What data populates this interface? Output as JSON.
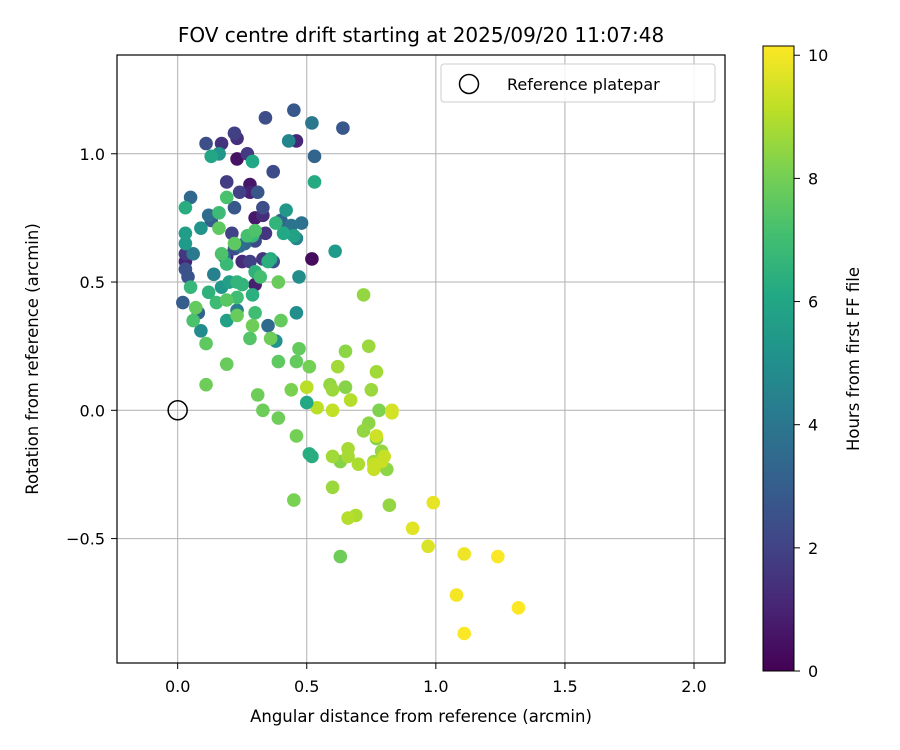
{
  "chart_data": {
    "type": "scatter",
    "title": "FOV centre drift starting at 2025/09/20 11:07:48",
    "xlabel": "Angular distance from reference (arcmin)",
    "ylabel": "Rotation from reference (arcmin)",
    "xlim": [
      -0.235,
      2.12
    ],
    "ylim": [
      -0.985,
      1.385
    ],
    "xticks": [
      0.0,
      0.5,
      1.0,
      1.5,
      2.0
    ],
    "xtick_labels": [
      "0.0",
      "0.5",
      "1.0",
      "1.5",
      "2.0"
    ],
    "yticks": [
      -0.5,
      0.0,
      0.5,
      1.0
    ],
    "ytick_labels": [
      "−0.5",
      "0.0",
      "0.5",
      "1.0"
    ],
    "grid": true,
    "legend": {
      "placement": "top-right",
      "entries": [
        "Reference platepar"
      ]
    },
    "reference_point": {
      "x": 0.0,
      "y": 0.0,
      "label": "Reference platepar"
    },
    "colorbar": {
      "label": "Hours from first FF file",
      "range": [
        0,
        10.15
      ],
      "ticks": [
        0,
        2,
        4,
        6,
        8,
        10
      ],
      "tick_labels": [
        "0",
        "2",
        "4",
        "6",
        "8",
        "10"
      ],
      "colormap": "viridis"
    },
    "series": [
      {
        "name": "FOV centre positions",
        "points": [
          [
            0.23,
            0.98,
            0.5
          ],
          [
            0.28,
            0.88,
            0.6
          ],
          [
            0.52,
            0.59,
            0.3
          ],
          [
            0.16,
            1.0,
            0.8
          ],
          [
            0.3,
            0.75,
            0.7
          ],
          [
            0.28,
            0.85,
            1.0
          ],
          [
            0.3,
            0.49,
            0.9
          ],
          [
            0.03,
            0.58,
            1.0
          ],
          [
            0.25,
            0.58,
            1.2
          ],
          [
            0.46,
            1.05,
            1.1
          ],
          [
            0.03,
            0.61,
            1.6
          ],
          [
            0.23,
            1.06,
            1.4
          ],
          [
            0.27,
            1.0,
            1.7
          ],
          [
            0.17,
            1.04,
            1.5
          ],
          [
            0.19,
            0.89,
            1.8
          ],
          [
            0.22,
            1.08,
            1.9
          ],
          [
            0.21,
            0.69,
            2.0
          ],
          [
            0.33,
            0.76,
            1.3
          ],
          [
            0.19,
            0.6,
            1.5
          ],
          [
            0.28,
            0.58,
            1.9
          ],
          [
            0.33,
            0.59,
            1.6
          ],
          [
            0.34,
            0.69,
            1.6
          ],
          [
            0.24,
            0.85,
            2.0
          ],
          [
            0.22,
            0.63,
            2.3
          ],
          [
            0.3,
            0.66,
            2.2
          ],
          [
            0.11,
            1.04,
            2.4
          ],
          [
            0.33,
            0.79,
            2.4
          ],
          [
            0.22,
            0.79,
            2.8
          ],
          [
            0.45,
            1.17,
            2.8
          ],
          [
            0.34,
            1.14,
            2.4
          ],
          [
            0.37,
            0.93,
            2.3
          ],
          [
            0.37,
            0.58,
            2.5
          ],
          [
            0.53,
            0.99,
            3.3
          ],
          [
            0.64,
            1.1,
            2.8
          ],
          [
            0.31,
            0.85,
            2.7
          ],
          [
            0.04,
            0.52,
            2.6
          ],
          [
            0.03,
            0.55,
            2.6
          ],
          [
            0.13,
            0.74,
            2.9
          ],
          [
            0.02,
            0.42,
            3.0
          ],
          [
            0.05,
            0.83,
            3.4
          ],
          [
            0.12,
            0.76,
            3.6
          ],
          [
            0.08,
            0.38,
            3.2
          ],
          [
            0.18,
            0.6,
            3.5
          ],
          [
            0.26,
            0.65,
            3.4
          ],
          [
            0.24,
            0.64,
            3.7
          ],
          [
            0.35,
            0.33,
            3.5
          ],
          [
            0.4,
            0.74,
            3.3
          ],
          [
            0.48,
            0.73,
            3.8
          ],
          [
            0.44,
            0.72,
            3.9
          ],
          [
            0.52,
            1.12,
            4.0
          ],
          [
            0.06,
            0.61,
            4.1
          ],
          [
            0.23,
            0.39,
            4.3
          ],
          [
            0.14,
            0.53,
            4.4
          ],
          [
            0.43,
            1.05,
            4.6
          ],
          [
            0.09,
            0.31,
            4.8
          ],
          [
            0.46,
            0.67,
            4.5
          ],
          [
            0.47,
            0.52,
            4.9
          ],
          [
            0.46,
            0.38,
            5.0
          ],
          [
            0.38,
            0.27,
            5.1
          ],
          [
            0.09,
            0.71,
            5.2
          ],
          [
            0.16,
            1.0,
            5.3
          ],
          [
            0.17,
            0.48,
            5.3
          ],
          [
            0.42,
            0.78,
            5.4
          ],
          [
            0.03,
            0.65,
            5.5
          ],
          [
            0.03,
            0.69,
            5.6
          ],
          [
            0.2,
            0.5,
            5.7
          ],
          [
            0.19,
            0.35,
            5.8
          ],
          [
            0.45,
            0.68,
            5.8
          ],
          [
            0.61,
            0.62,
            5.5
          ],
          [
            0.13,
            0.99,
            6.0
          ],
          [
            0.29,
            0.97,
            6.1
          ],
          [
            0.41,
            0.69,
            6.1
          ],
          [
            0.53,
            0.89,
            6.2
          ],
          [
            0.36,
            0.59,
            6.2
          ],
          [
            0.03,
            0.79,
            6.3
          ],
          [
            0.29,
            0.45,
            6.4
          ],
          [
            0.35,
            0.58,
            6.4
          ],
          [
            0.12,
            0.46,
            6.5
          ],
          [
            0.3,
            0.54,
            6.5
          ],
          [
            0.38,
            0.73,
            6.6
          ],
          [
            0.23,
            0.5,
            6.6
          ],
          [
            0.25,
            0.49,
            6.6
          ],
          [
            0.05,
            0.48,
            6.7
          ],
          [
            0.29,
            0.68,
            6.7
          ],
          [
            0.19,
            0.57,
            6.8
          ],
          [
            0.16,
            0.77,
            6.9
          ],
          [
            0.15,
            0.42,
            6.9
          ],
          [
            0.23,
            0.44,
            7.0
          ],
          [
            0.3,
            0.38,
            7.0
          ],
          [
            0.32,
            0.52,
            7.1
          ],
          [
            0.27,
            0.68,
            7.1
          ],
          [
            0.19,
            0.83,
            7.2
          ],
          [
            0.06,
            0.35,
            7.2
          ],
          [
            0.17,
            0.61,
            7.3
          ],
          [
            0.3,
            0.7,
            7.3
          ],
          [
            0.28,
            0.28,
            7.4
          ],
          [
            0.19,
            0.43,
            7.5
          ],
          [
            0.11,
            0.26,
            7.6
          ],
          [
            0.22,
            0.65,
            7.6
          ],
          [
            0.16,
            0.71,
            7.6
          ],
          [
            0.07,
            0.4,
            7.7
          ],
          [
            0.4,
            0.35,
            7.7
          ],
          [
            0.23,
            0.37,
            7.8
          ],
          [
            0.39,
            0.5,
            7.8
          ],
          [
            0.36,
            0.28,
            7.9
          ],
          [
            0.29,
            0.33,
            7.9
          ],
          [
            0.39,
            0.19,
            7.6
          ],
          [
            0.46,
            0.19,
            7.7
          ],
          [
            0.47,
            0.24,
            7.7
          ],
          [
            0.51,
            0.17,
            8.0
          ],
          [
            0.19,
            0.18,
            7.8
          ],
          [
            0.11,
            0.1,
            7.9
          ],
          [
            0.31,
            0.06,
            7.9
          ],
          [
            0.33,
            0.0,
            7.9
          ],
          [
            0.39,
            -0.03,
            7.9
          ],
          [
            0.46,
            -0.1,
            8.0
          ],
          [
            0.44,
            0.08,
            8.1
          ],
          [
            0.45,
            -0.35,
            8.1
          ],
          [
            0.63,
            -0.57,
            7.9
          ],
          [
            0.65,
            0.09,
            8.3
          ],
          [
            0.63,
            -0.2,
            8.3
          ],
          [
            0.65,
            0.23,
            8.4
          ],
          [
            0.59,
            0.1,
            8.5
          ],
          [
            0.6,
            0.08,
            8.6
          ],
          [
            0.62,
            0.17,
            8.7
          ],
          [
            0.72,
            0.45,
            8.5
          ],
          [
            0.74,
            0.25,
            8.6
          ],
          [
            0.77,
            0.15,
            8.7
          ],
          [
            0.78,
            0.0,
            8.2
          ],
          [
            0.77,
            -0.11,
            8.3
          ],
          [
            0.81,
            -0.23,
            8.4
          ],
          [
            0.79,
            -0.16,
            8.5
          ],
          [
            0.76,
            -0.2,
            8.6
          ],
          [
            0.74,
            -0.05,
            8.4
          ],
          [
            0.72,
            -0.08,
            8.5
          ],
          [
            0.75,
            0.08,
            8.6
          ],
          [
            0.82,
            -0.37,
            8.5
          ],
          [
            0.6,
            -0.3,
            8.6
          ],
          [
            0.6,
            -0.18,
            8.7
          ],
          [
            0.66,
            -0.15,
            8.8
          ],
          [
            0.66,
            -0.18,
            8.8
          ],
          [
            0.7,
            -0.21,
            8.9
          ],
          [
            0.69,
            -0.41,
            8.9
          ],
          [
            0.66,
            -0.42,
            9.0
          ],
          [
            0.67,
            0.04,
            9.0
          ],
          [
            0.54,
            0.01,
            9.1
          ],
          [
            0.5,
            0.09,
            9.1
          ],
          [
            0.6,
            0.0,
            9.2
          ],
          [
            0.76,
            -0.21,
            9.2
          ],
          [
            0.76,
            -0.23,
            9.3
          ],
          [
            0.79,
            -0.2,
            9.3
          ],
          [
            0.8,
            -0.18,
            9.3
          ],
          [
            0.77,
            -0.1,
            9.4
          ],
          [
            0.83,
            0.0,
            9.5
          ],
          [
            0.83,
            -0.01,
            9.5
          ],
          [
            0.97,
            -0.53,
            9.6
          ],
          [
            0.91,
            -0.46,
            9.7
          ],
          [
            0.99,
            -0.36,
            9.8
          ],
          [
            1.11,
            -0.56,
            9.9
          ],
          [
            1.08,
            -0.72,
            10.0
          ],
          [
            1.11,
            -0.87,
            10.1
          ],
          [
            1.24,
            -0.57,
            10.1
          ],
          [
            1.32,
            -0.77,
            10.15
          ],
          [
            0.5,
            0.03,
            6.1
          ],
          [
            0.51,
            -0.17,
            6.3
          ],
          [
            0.52,
            -0.18,
            6.3
          ]
        ]
      }
    ]
  }
}
